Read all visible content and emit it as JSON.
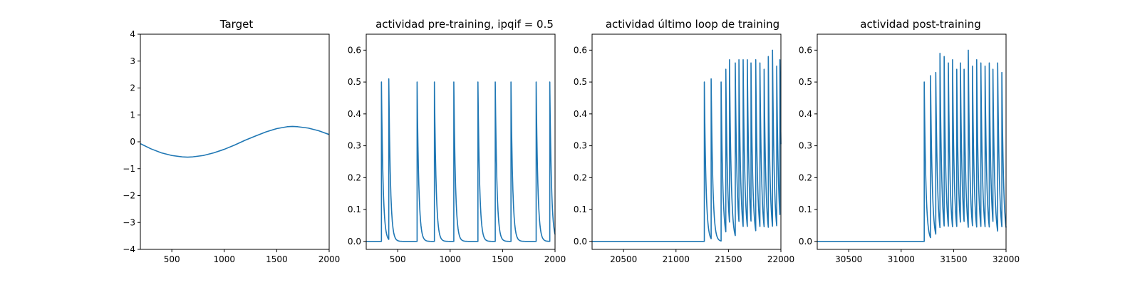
{
  "chart_data": [
    {
      "type": "line",
      "title": "Target",
      "xlabel": "",
      "ylabel": "",
      "xlim": [
        200,
        2000
      ],
      "ylim": [
        -4,
        4
      ],
      "xticks": [
        500,
        1000,
        1500,
        2000
      ],
      "yticks": [
        -4,
        -3,
        -2,
        -1,
        0,
        1,
        2,
        3,
        4
      ],
      "grid": false,
      "series": [
        {
          "x": [
            200,
            300,
            400,
            500,
            600,
            650,
            700,
            800,
            900,
            1000,
            1100,
            1200,
            1300,
            1400,
            1500,
            1600,
            1650,
            1700,
            1800,
            1900,
            2000
          ],
          "values": [
            -0.07,
            -0.26,
            -0.41,
            -0.51,
            -0.56,
            -0.57,
            -0.56,
            -0.51,
            -0.41,
            -0.28,
            -0.12,
            0.06,
            0.22,
            0.37,
            0.49,
            0.56,
            0.57,
            0.56,
            0.51,
            0.41,
            0.27
          ]
        }
      ]
    },
    {
      "type": "line",
      "title": "actividad pre-training, ipqif = 0.5",
      "xlabel": "",
      "ylabel": "",
      "xlim": [
        200,
        2000
      ],
      "ylim": [
        -0.025,
        0.65
      ],
      "xticks": [
        500,
        1000,
        1500,
        2000
      ],
      "yticks": [
        0.0,
        0.1,
        0.2,
        0.3,
        0.4,
        0.5,
        0.6
      ],
      "grid": false,
      "spikes": [
        {
          "t": 345,
          "peak": 0.5,
          "next": 415
        },
        {
          "t": 415,
          "peak": 0.51
        },
        {
          "t": 685,
          "peak": 0.5
        },
        {
          "t": 850,
          "peak": 0.5
        },
        {
          "t": 1035,
          "peak": 0.5
        },
        {
          "t": 1265,
          "peak": 0.5
        },
        {
          "t": 1430,
          "peak": 0.5
        },
        {
          "t": 1580,
          "peak": 0.5
        },
        {
          "t": 1820,
          "peak": 0.5
        },
        {
          "t": 1950,
          "peak": 0.5
        }
      ]
    },
    {
      "type": "line",
      "title": "actividad último loop de training",
      "xlabel": "",
      "ylabel": "",
      "xlim": [
        20200,
        22000
      ],
      "ylim": [
        -0.025,
        0.65
      ],
      "xticks": [
        20500,
        21000,
        21500,
        22000
      ],
      "yticks": [
        0.0,
        0.1,
        0.2,
        0.3,
        0.4,
        0.5,
        0.6
      ],
      "grid": false,
      "spikes": [
        {
          "t": 21270,
          "peak": 0.5
        },
        {
          "t": 21335,
          "peak": 0.51
        },
        {
          "t": 21430,
          "peak": 0.5
        },
        {
          "t": 21475,
          "peak": 0.54
        },
        {
          "t": 21510,
          "peak": 0.57
        },
        {
          "t": 21565,
          "peak": 0.56
        },
        {
          "t": 21600,
          "peak": 0.57
        },
        {
          "t": 21640,
          "peak": 0.57
        },
        {
          "t": 21680,
          "peak": 0.57
        },
        {
          "t": 21715,
          "peak": 0.56
        },
        {
          "t": 21760,
          "peak": 0.57
        },
        {
          "t": 21800,
          "peak": 0.56
        },
        {
          "t": 21840,
          "peak": 0.54
        },
        {
          "t": 21880,
          "peak": 0.58
        },
        {
          "t": 21920,
          "peak": 0.6
        },
        {
          "t": 21960,
          "peak": 0.55
        },
        {
          "t": 21990,
          "peak": 0.57
        }
      ]
    },
    {
      "type": "line",
      "title": "actividad post-training",
      "xlabel": "",
      "ylabel": "",
      "xlim": [
        30200,
        32000
      ],
      "ylim": [
        -0.025,
        0.65
      ],
      "xticks": [
        30500,
        31000,
        31500,
        32000
      ],
      "yticks": [
        0.0,
        0.1,
        0.2,
        0.3,
        0.4,
        0.5,
        0.6
      ],
      "grid": false,
      "spikes": [
        {
          "t": 31220,
          "peak": 0.5
        },
        {
          "t": 31280,
          "peak": 0.52
        },
        {
          "t": 31330,
          "peak": 0.53
        },
        {
          "t": 31370,
          "peak": 0.59
        },
        {
          "t": 31410,
          "peak": 0.58
        },
        {
          "t": 31450,
          "peak": 0.56
        },
        {
          "t": 31490,
          "peak": 0.57
        },
        {
          "t": 31530,
          "peak": 0.54
        },
        {
          "t": 31565,
          "peak": 0.56
        },
        {
          "t": 31600,
          "peak": 0.54
        },
        {
          "t": 31640,
          "peak": 0.6
        },
        {
          "t": 31680,
          "peak": 0.55
        },
        {
          "t": 31720,
          "peak": 0.57
        },
        {
          "t": 31760,
          "peak": 0.56
        },
        {
          "t": 31800,
          "peak": 0.55
        },
        {
          "t": 31840,
          "peak": 0.56
        },
        {
          "t": 31875,
          "peak": 0.54
        },
        {
          "t": 31920,
          "peak": 0.56
        },
        {
          "t": 31960,
          "peak": 0.53
        }
      ]
    }
  ],
  "colors": {
    "trace": "#1f77b4"
  }
}
